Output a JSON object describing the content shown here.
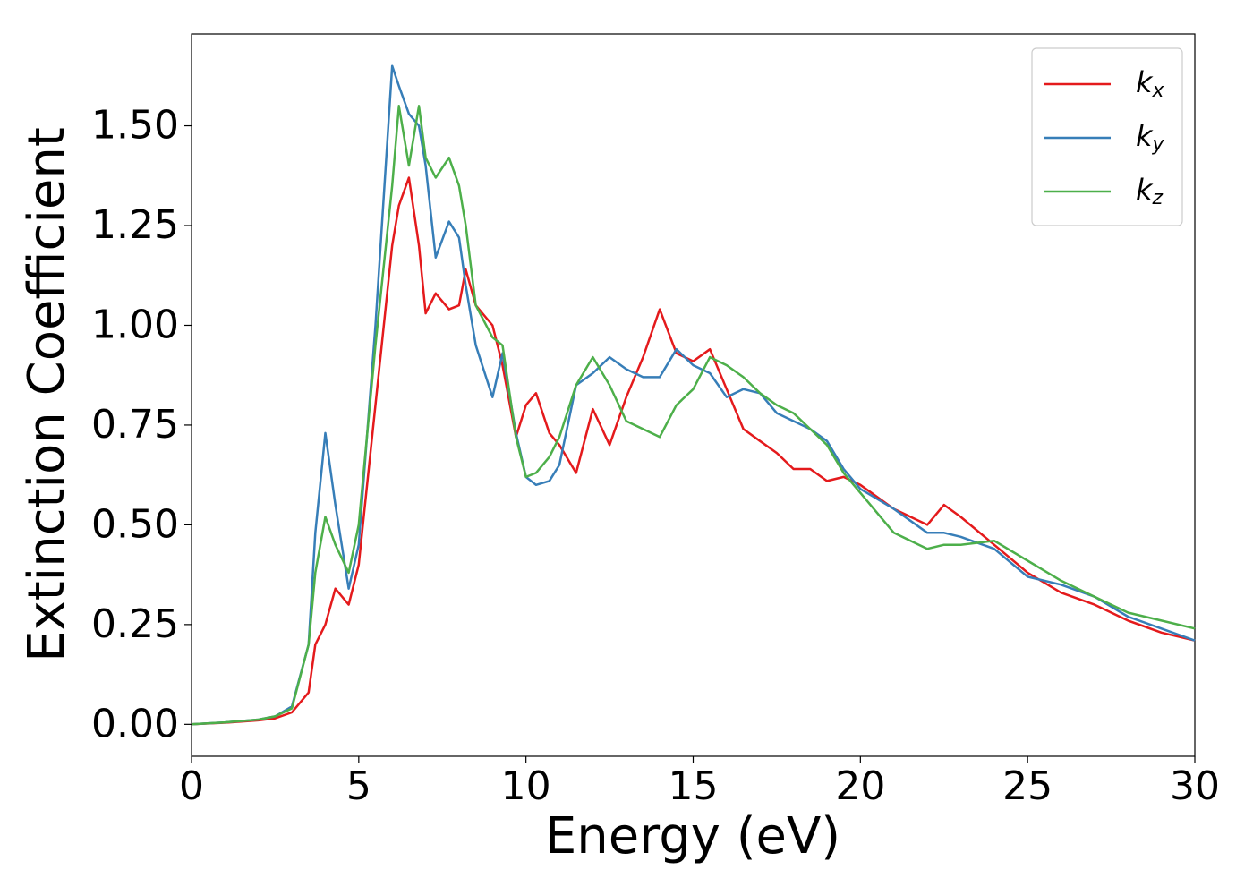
{
  "chart_data": {
    "type": "line",
    "xlabel": "Energy (eV)",
    "ylabel": "Extinction Coefficient",
    "x": [
      0,
      1,
      2,
      2.5,
      3,
      3.5,
      3.7,
      4,
      4.3,
      4.7,
      5,
      5.5,
      6,
      6.2,
      6.5,
      6.8,
      7,
      7.3,
      7.7,
      8,
      8.2,
      8.5,
      9,
      9.3,
      9.7,
      10,
      10.3,
      10.7,
      11,
      11.5,
      12,
      12.5,
      13,
      13.5,
      14,
      14.5,
      15,
      15.5,
      16,
      16.5,
      17,
      17.5,
      18,
      18.5,
      19,
      19.5,
      20,
      21,
      22,
      22.5,
      23,
      24,
      25,
      26,
      27,
      28,
      29,
      30
    ],
    "series": [
      {
        "name": "kx",
        "color": "#e41a1c",
        "values": [
          0,
          0.004,
          0.01,
          0.015,
          0.03,
          0.08,
          0.2,
          0.25,
          0.34,
          0.3,
          0.4,
          0.8,
          1.2,
          1.3,
          1.37,
          1.2,
          1.03,
          1.08,
          1.04,
          1.05,
          1.14,
          1.05,
          1.0,
          0.9,
          0.72,
          0.8,
          0.83,
          0.73,
          0.7,
          0.63,
          0.79,
          0.7,
          0.82,
          0.92,
          1.04,
          0.93,
          0.91,
          0.94,
          0.84,
          0.74,
          0.71,
          0.68,
          0.64,
          0.64,
          0.61,
          0.62,
          0.6,
          0.54,
          0.5,
          0.55,
          0.52,
          0.45,
          0.38,
          0.33,
          0.3,
          0.26,
          0.23,
          0.21
        ]
      },
      {
        "name": "ky",
        "color": "#377eb8",
        "values": [
          0,
          0.005,
          0.012,
          0.02,
          0.045,
          0.2,
          0.48,
          0.73,
          0.55,
          0.34,
          0.45,
          1.0,
          1.65,
          1.6,
          1.53,
          1.5,
          1.4,
          1.17,
          1.26,
          1.22,
          1.1,
          0.95,
          0.82,
          0.93,
          0.73,
          0.62,
          0.6,
          0.61,
          0.65,
          0.85,
          0.88,
          0.92,
          0.89,
          0.87,
          0.87,
          0.94,
          0.9,
          0.88,
          0.82,
          0.84,
          0.83,
          0.78,
          0.76,
          0.74,
          0.71,
          0.64,
          0.59,
          0.54,
          0.48,
          0.48,
          0.47,
          0.44,
          0.37,
          0.35,
          0.32,
          0.27,
          0.24,
          0.21
        ]
      },
      {
        "name": "kz",
        "color": "#4daf4a",
        "values": [
          0,
          0.005,
          0.012,
          0.02,
          0.04,
          0.2,
          0.38,
          0.52,
          0.45,
          0.38,
          0.5,
          0.95,
          1.35,
          1.55,
          1.4,
          1.55,
          1.42,
          1.37,
          1.42,
          1.35,
          1.25,
          1.05,
          0.97,
          0.95,
          0.72,
          0.62,
          0.63,
          0.67,
          0.72,
          0.85,
          0.92,
          0.85,
          0.76,
          0.74,
          0.72,
          0.8,
          0.84,
          0.92,
          0.9,
          0.87,
          0.83,
          0.8,
          0.78,
          0.74,
          0.7,
          0.63,
          0.58,
          0.48,
          0.44,
          0.45,
          0.45,
          0.46,
          0.41,
          0.36,
          0.32,
          0.28,
          0.26,
          0.24
        ]
      }
    ],
    "xlim": [
      0,
      30
    ],
    "xticks": [
      0,
      5,
      10,
      15,
      20,
      25,
      30
    ],
    "ylim": [
      -0.08,
      1.73
    ],
    "yticks": [
      {
        "value": 0,
        "label": "0.00"
      },
      {
        "value": 0.25,
        "label": "0.25"
      },
      {
        "value": 0.5,
        "label": "0.50"
      },
      {
        "value": 0.75,
        "label": "0.75"
      },
      {
        "value": 1.0,
        "label": "1.00"
      },
      {
        "value": 1.25,
        "label": "1.25"
      },
      {
        "value": 1.5,
        "label": "1.50"
      }
    ],
    "legend": "upper right",
    "grid": false
  }
}
